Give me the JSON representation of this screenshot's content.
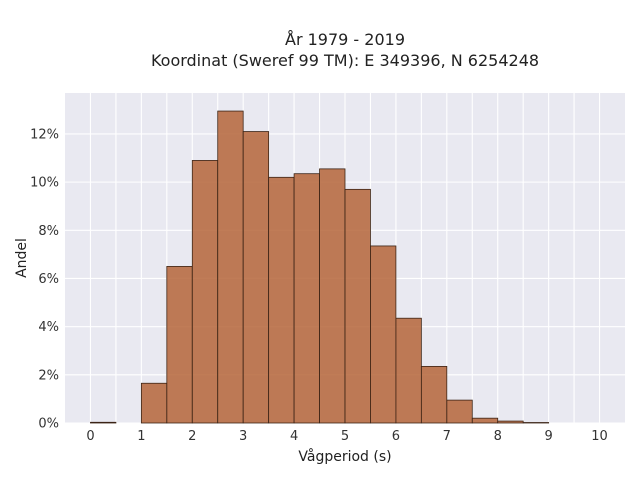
{
  "chart_data": {
    "type": "bar",
    "title_line1": "År 1979 - 2019",
    "title_line2": "Koordinat (Sweref 99 TM): E 349396, N 6254248",
    "xlabel": "Vågperiod (s)",
    "ylabel": "Andel",
    "xlim": [
      -0.5,
      10.5
    ],
    "ylim": [
      0,
      13.7
    ],
    "x_ticks": [
      0,
      1,
      2,
      3,
      4,
      5,
      6,
      7,
      8,
      9,
      10
    ],
    "y_ticks": [
      0,
      2,
      4,
      6,
      8,
      10,
      12
    ],
    "y_tick_labels": [
      "0%",
      "2%",
      "4%",
      "6%",
      "8%",
      "10%",
      "12%"
    ],
    "bin_width": 0.5,
    "bins": [
      {
        "x0": 0.0,
        "value": 0.03
      },
      {
        "x0": 0.5,
        "value": 0.0
      },
      {
        "x0": 1.0,
        "value": 1.65
      },
      {
        "x0": 1.5,
        "value": 6.5
      },
      {
        "x0": 2.0,
        "value": 10.9
      },
      {
        "x0": 2.5,
        "value": 12.95
      },
      {
        "x0": 3.0,
        "value": 12.1
      },
      {
        "x0": 3.5,
        "value": 10.2
      },
      {
        "x0": 4.0,
        "value": 10.35
      },
      {
        "x0": 4.5,
        "value": 10.55
      },
      {
        "x0": 5.0,
        "value": 9.7
      },
      {
        "x0": 5.5,
        "value": 7.35
      },
      {
        "x0": 6.0,
        "value": 4.35
      },
      {
        "x0": 6.5,
        "value": 2.35
      },
      {
        "x0": 7.0,
        "value": 0.95
      },
      {
        "x0": 7.5,
        "value": 0.2
      },
      {
        "x0": 8.0,
        "value": 0.08
      },
      {
        "x0": 8.5,
        "value": 0.02
      }
    ],
    "grid": true,
    "colors": {
      "bar_fill": "#b5653a",
      "bar_edge": "#3b2315",
      "plot_background": "#e9e9f1",
      "grid": "#ffffff"
    }
  }
}
